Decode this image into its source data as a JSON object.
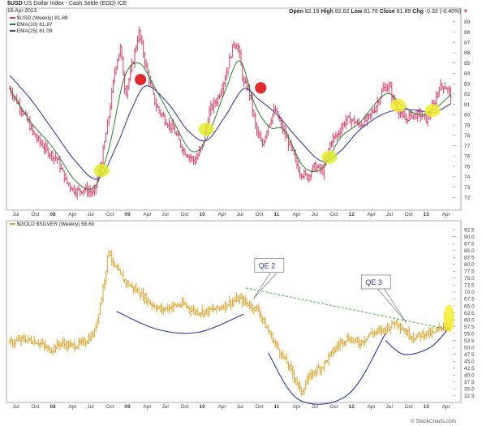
{
  "top_panel": {
    "title_symbol": "$USD",
    "title_desc": "US Dollar Index - Cash Settle (EOD) ICE",
    "date": "16-Apr-2013",
    "quote": {
      "open_label": "Open",
      "open": "82.19",
      "high_label": "High",
      "high": "82.62",
      "low_label": "Low",
      "low": "81.78",
      "close_label": "Close",
      "close": "81.89",
      "chg_label": "Chg",
      "chg": "-0.32 (-0.40%)"
    },
    "legend": [
      {
        "text": "$USD (Weekly) 81.89",
        "color": "#d4426a"
      },
      {
        "text": "EMA(10) 81.97",
        "color": "#2e7d32"
      },
      {
        "text": "EMA(25) 81.09",
        "color": "#3a3f9c"
      }
    ],
    "watermark": "© StockCharts.com"
  },
  "bottom_panel": {
    "legend": "$GOLD:$SILVER (Weekly) 58.60",
    "legend_color": "#d9a531"
  },
  "x_ticks": [
    "Jul",
    "Oct",
    "08",
    "Apr",
    "Jul",
    "Oct",
    "09",
    "Apr",
    "Jul",
    "Oct",
    "10",
    "Apr",
    "Jul",
    "Oct",
    "11",
    "Apr",
    "Jul",
    "Oct",
    "12",
    "Apr",
    "Jul",
    "Oct",
    "13",
    "Apr"
  ],
  "chart_data": [
    {
      "type": "ohlc",
      "title": "$USD (Weekly)",
      "ylim": [
        71,
        90
      ],
      "y_ticks": [
        72,
        73,
        74,
        75,
        76,
        77,
        78,
        79,
        80,
        81,
        82,
        83,
        84,
        85,
        86,
        87,
        88,
        89
      ],
      "series_color": "#d4426a",
      "ema10_color": "#2e7d32",
      "ema25_color": "#3a3f9c",
      "x_range": [
        2007.42,
        2013.33
      ],
      "price_path": [
        [
          2007.42,
          82.5
        ],
        [
          2007.58,
          80.5
        ],
        [
          2007.75,
          78.0
        ],
        [
          2007.92,
          76.5
        ],
        [
          2008.05,
          75.8
        ],
        [
          2008.18,
          73.5
        ],
        [
          2008.3,
          72.6
        ],
        [
          2008.42,
          72.8
        ],
        [
          2008.55,
          72.4
        ],
        [
          2008.65,
          75.5
        ],
        [
          2008.75,
          80.0
        ],
        [
          2008.83,
          84.5
        ],
        [
          2008.9,
          86.5
        ],
        [
          2008.97,
          82.0
        ],
        [
          2009.05,
          84.5
        ],
        [
          2009.15,
          88.0
        ],
        [
          2009.25,
          84.5
        ],
        [
          2009.37,
          81.0
        ],
        [
          2009.5,
          79.5
        ],
        [
          2009.62,
          78.5
        ],
        [
          2009.75,
          76.5
        ],
        [
          2009.9,
          75.5
        ],
        [
          2010.0,
          77.0
        ],
        [
          2010.1,
          80.5
        ],
        [
          2010.2,
          81.5
        ],
        [
          2010.3,
          83.5
        ],
        [
          2010.42,
          87.0
        ],
        [
          2010.48,
          86.5
        ],
        [
          2010.55,
          83.0
        ],
        [
          2010.62,
          82.5
        ],
        [
          2010.72,
          78.5
        ],
        [
          2010.8,
          77.0
        ],
        [
          2010.88,
          79.0
        ],
        [
          2010.97,
          80.5
        ],
        [
          2011.08,
          78.5
        ],
        [
          2011.2,
          76.5
        ],
        [
          2011.3,
          74.5
        ],
        [
          2011.4,
          74.0
        ],
        [
          2011.5,
          75.0
        ],
        [
          2011.62,
          74.5
        ],
        [
          2011.72,
          77.5
        ],
        [
          2011.8,
          78.0
        ],
        [
          2011.92,
          79.5
        ],
        [
          2012.0,
          79.5
        ],
        [
          2012.1,
          79.0
        ],
        [
          2012.2,
          79.5
        ],
        [
          2012.3,
          80.5
        ],
        [
          2012.42,
          82.5
        ],
        [
          2012.5,
          82.8
        ],
        [
          2012.58,
          81.0
        ],
        [
          2012.7,
          79.5
        ],
        [
          2012.8,
          80.0
        ],
        [
          2012.92,
          80.0
        ],
        [
          2013.0,
          79.5
        ],
        [
          2013.1,
          81.0
        ],
        [
          2013.17,
          82.7
        ],
        [
          2013.25,
          82.8
        ],
        [
          2013.33,
          81.9
        ]
      ],
      "ema10_path": [
        [
          2007.42,
          82.5
        ],
        [
          2007.7,
          79.3
        ],
        [
          2008.0,
          76.8
        ],
        [
          2008.3,
          73.6
        ],
        [
          2008.55,
          73.0
        ],
        [
          2008.75,
          76.8
        ],
        [
          2008.95,
          83.5
        ],
        [
          2009.15,
          85.0
        ],
        [
          2009.35,
          82.8
        ],
        [
          2009.6,
          79.5
        ],
        [
          2009.85,
          76.5
        ],
        [
          2010.05,
          77.6
        ],
        [
          2010.3,
          82.2
        ],
        [
          2010.5,
          85.2
        ],
        [
          2010.7,
          81.0
        ],
        [
          2010.9,
          78.8
        ],
        [
          2011.1,
          78.5
        ],
        [
          2011.35,
          75.0
        ],
        [
          2011.6,
          74.8
        ],
        [
          2011.85,
          77.8
        ],
        [
          2012.1,
          79.2
        ],
        [
          2012.45,
          82.0
        ],
        [
          2012.65,
          81.0
        ],
        [
          2012.9,
          80.0
        ],
        [
          2013.1,
          80.5
        ],
        [
          2013.33,
          81.97
        ]
      ],
      "ema25_path": [
        [
          2007.42,
          83.8
        ],
        [
          2007.7,
          81.5
        ],
        [
          2008.0,
          78.5
        ],
        [
          2008.3,
          75.5
        ],
        [
          2008.6,
          73.8
        ],
        [
          2008.85,
          77.0
        ],
        [
          2009.05,
          80.5
        ],
        [
          2009.25,
          82.8
        ],
        [
          2009.55,
          81.0
        ],
        [
          2009.8,
          78.5
        ],
        [
          2010.05,
          77.5
        ],
        [
          2010.3,
          79.8
        ],
        [
          2010.55,
          82.5
        ],
        [
          2010.75,
          81.5
        ],
        [
          2011.0,
          80.0
        ],
        [
          2011.3,
          77.5
        ],
        [
          2011.6,
          75.5
        ],
        [
          2011.85,
          76.5
        ],
        [
          2012.1,
          78.5
        ],
        [
          2012.4,
          80.0
        ],
        [
          2012.65,
          80.5
        ],
        [
          2012.9,
          80.4
        ],
        [
          2013.1,
          80.2
        ],
        [
          2013.33,
          81.09
        ]
      ],
      "markers": [
        {
          "x": 2008.65,
          "y": 74.6,
          "color": "#e0ec2a",
          "type": "buy"
        },
        {
          "x": 2009.17,
          "y": 83.4,
          "color": "#dd1e22",
          "type": "sell"
        },
        {
          "x": 2010.05,
          "y": 78.6,
          "color": "#e0ec2a",
          "type": "buy"
        },
        {
          "x": 2010.78,
          "y": 82.6,
          "color": "#dd1e22",
          "type": "sell"
        },
        {
          "x": 2011.7,
          "y": 75.9,
          "color": "#e0ec2a",
          "type": "buy"
        },
        {
          "x": 2012.62,
          "y": 80.9,
          "color": "#f2ef2e",
          "type": "buy"
        },
        {
          "x": 2013.08,
          "y": 80.4,
          "color": "#f2ef2e",
          "type": "buy"
        }
      ]
    },
    {
      "type": "ohlc",
      "title": "$GOLD:$SILVER (Weekly)",
      "ylim": [
        31,
        94
      ],
      "y_ticks": [
        32.5,
        35.0,
        37.5,
        40.0,
        42.5,
        45.0,
        47.5,
        50.0,
        52.5,
        55.0,
        57.5,
        60.0,
        62.5,
        65.0,
        67.5,
        70.0,
        72.5,
        75.0,
        77.5,
        80.0,
        82.5,
        85.0,
        87.5,
        90.0,
        92.5
      ],
      "series_color": "#d9a531",
      "x_range": [
        2007.42,
        2013.33
      ],
      "price_path": [
        [
          2007.42,
          51.5
        ],
        [
          2007.6,
          53.0
        ],
        [
          2007.8,
          52.0
        ],
        [
          2007.95,
          49.0
        ],
        [
          2008.1,
          51.5
        ],
        [
          2008.25,
          50.5
        ],
        [
          2008.4,
          51.5
        ],
        [
          2008.55,
          55.0
        ],
        [
          2008.65,
          68.0
        ],
        [
          2008.75,
          86.0
        ],
        [
          2008.8,
          80.0
        ],
        [
          2008.9,
          76.0
        ],
        [
          2009.0,
          73.0
        ],
        [
          2009.15,
          70.0
        ],
        [
          2009.3,
          66.0
        ],
        [
          2009.45,
          63.5
        ],
        [
          2009.6,
          65.0
        ],
        [
          2009.75,
          65.5
        ],
        [
          2009.9,
          63.0
        ],
        [
          2010.05,
          63.0
        ],
        [
          2010.2,
          64.0
        ],
        [
          2010.35,
          66.0
        ],
        [
          2010.5,
          67.5
        ],
        [
          2010.65,
          65.0
        ],
        [
          2010.75,
          63.5
        ],
        [
          2010.85,
          57.5
        ],
        [
          2010.95,
          52.5
        ],
        [
          2011.05,
          48.0
        ],
        [
          2011.15,
          43.5
        ],
        [
          2011.25,
          38.5
        ],
        [
          2011.32,
          33.5
        ],
        [
          2011.4,
          38.0
        ],
        [
          2011.5,
          41.5
        ],
        [
          2011.6,
          43.0
        ],
        [
          2011.72,
          47.5
        ],
        [
          2011.85,
          52.0
        ],
        [
          2011.95,
          53.5
        ],
        [
          2012.1,
          51.5
        ],
        [
          2012.25,
          55.0
        ],
        [
          2012.4,
          56.0
        ],
        [
          2012.5,
          57.5
        ],
        [
          2012.6,
          59.5
        ],
        [
          2012.72,
          55.5
        ],
        [
          2012.85,
          53.5
        ],
        [
          2012.95,
          55.0
        ],
        [
          2013.1,
          55.0
        ],
        [
          2013.2,
          57.5
        ],
        [
          2013.33,
          58.6
        ]
      ],
      "resistance_line": [
        [
          2010.58,
          71.5
        ],
        [
          2013.3,
          56.5
        ]
      ],
      "arcs": [
        {
          "points": [
            [
              2008.85,
              63.0
            ],
            [
              2009.4,
              56.5
            ],
            [
              2009.95,
              55.5
            ],
            [
              2010.55,
              62.0
            ]
          ]
        },
        {
          "points": [
            [
              2010.88,
              48.0
            ],
            [
              2011.3,
              31.0
            ],
            [
              2011.95,
              33.0
            ],
            [
              2012.45,
              55.0
            ]
          ]
        },
        {
          "points": [
            [
              2012.45,
              52.5
            ],
            [
              2012.7,
              47.5
            ],
            [
              2013.05,
              50.0
            ],
            [
              2013.3,
              57.0
            ]
          ]
        }
      ],
      "callouts": [
        {
          "label": "QE 2",
          "box_x": 2010.72,
          "box_y": 79.5,
          "point_x": 2010.68,
          "point_y": 67.5
        },
        {
          "label": "QE 3",
          "box_x": 2012.15,
          "box_y": 73.5,
          "point_x": 2012.73,
          "point_y": 59.0
        }
      ],
      "highlight": {
        "x": 2013.3,
        "y": 60.5,
        "color": "#f2ef2e"
      }
    }
  ]
}
